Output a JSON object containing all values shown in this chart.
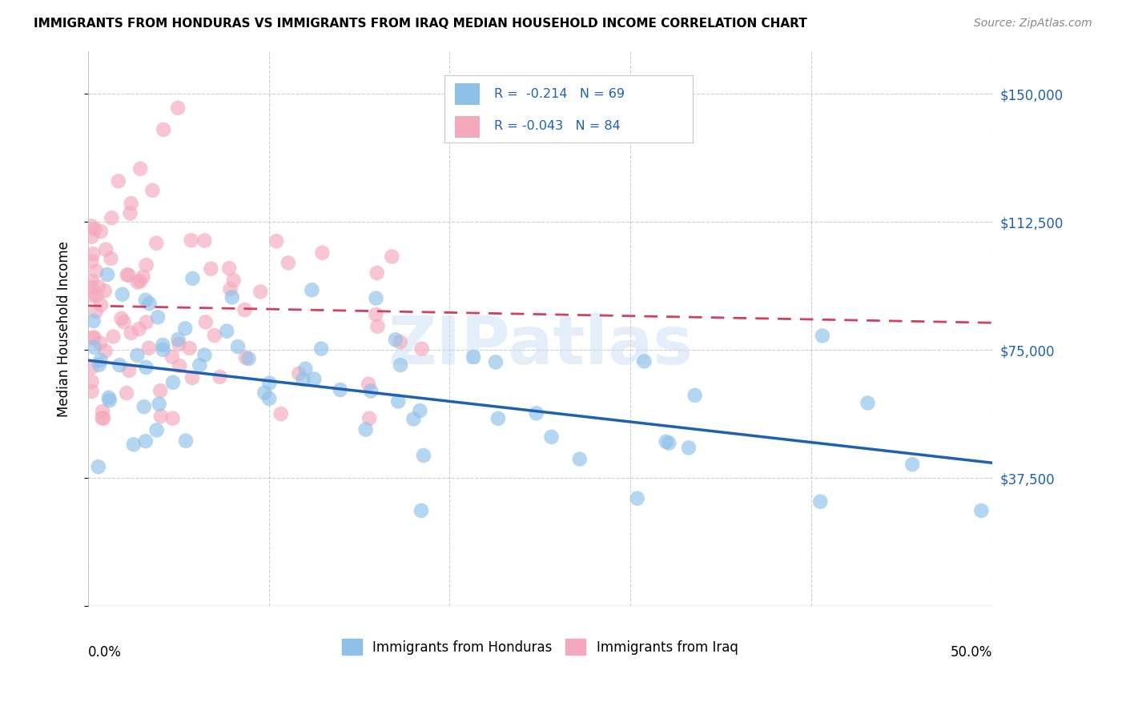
{
  "title": "IMMIGRANTS FROM HONDURAS VS IMMIGRANTS FROM IRAQ MEDIAN HOUSEHOLD INCOME CORRELATION CHART",
  "source": "Source: ZipAtlas.com",
  "ylabel": "Median Household Income",
  "yticks": [
    0,
    37500,
    75000,
    112500,
    150000
  ],
  "ytick_labels": [
    "",
    "$37,500",
    "$75,000",
    "$112,500",
    "$150,000"
  ],
  "xlim": [
    0.0,
    50.0
  ],
  "ylim": [
    0,
    162500
  ],
  "background_color": "#ffffff",
  "grid_color": "#c8c8c8",
  "legend_label_blue": "Immigrants from Honduras",
  "legend_label_pink": "Immigrants from Iraq",
  "blue_color": "#8ec0e8",
  "pink_color": "#f4a8bc",
  "trend_blue_color": "#2060b0",
  "trend_pink_color": "#d04060",
  "title_fontsize": 11,
  "source_fontsize": 10,
  "tick_fontsize": 12,
  "legend_fontsize": 12
}
